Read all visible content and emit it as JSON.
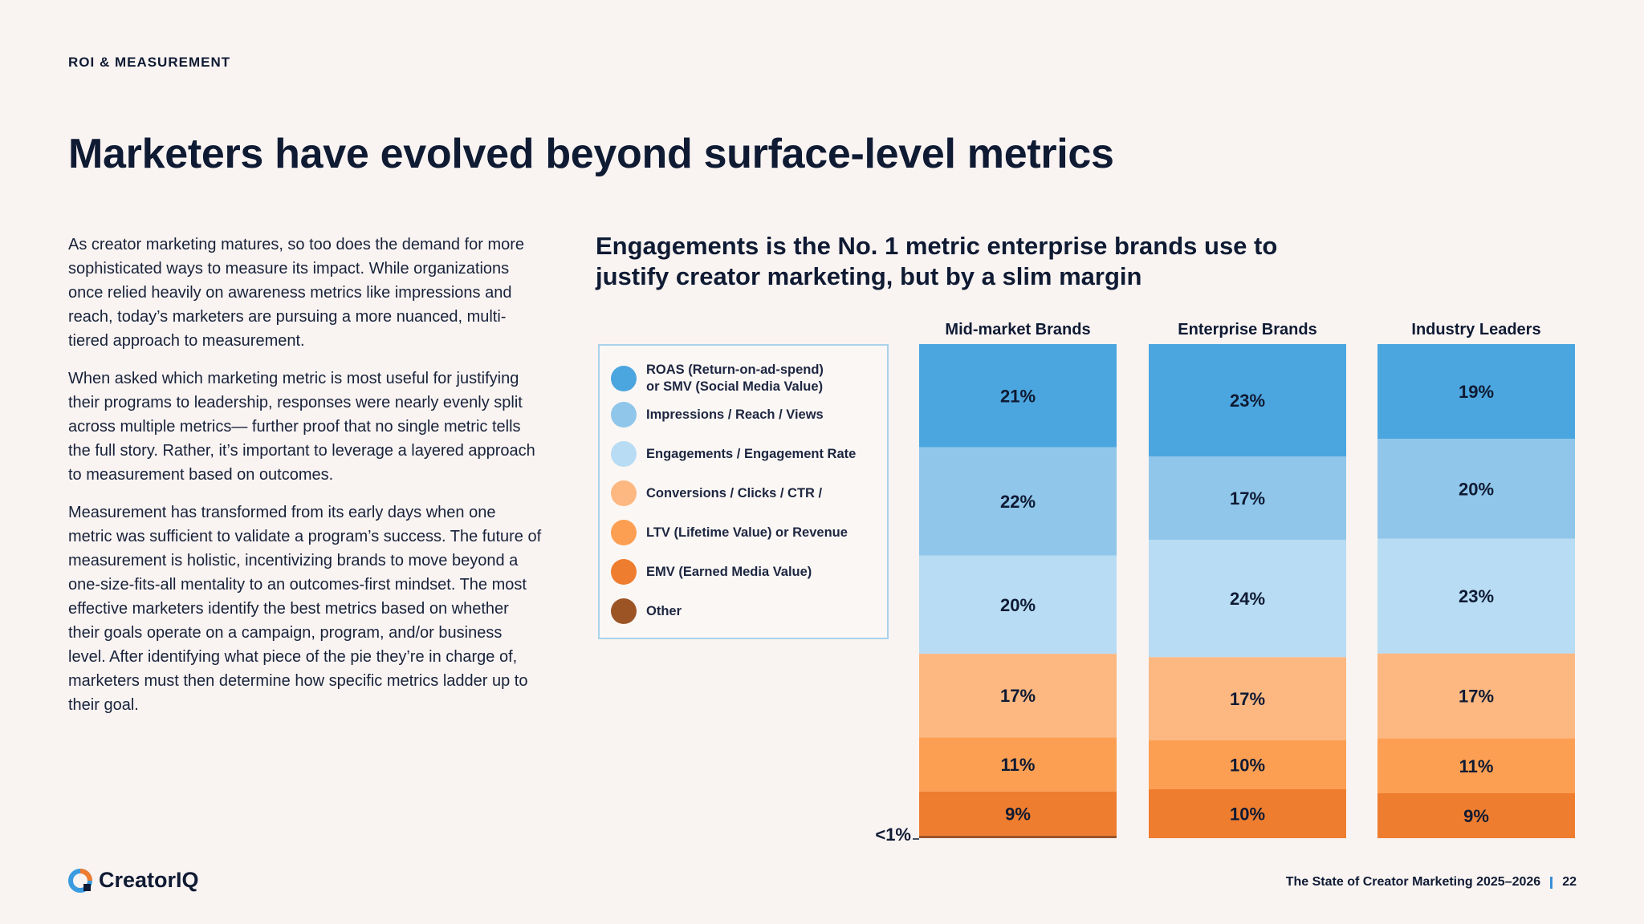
{
  "header": {
    "section_label": "ROI & MEASUREMENT",
    "title": "Marketers have evolved beyond surface-level metrics"
  },
  "body": {
    "paragraphs": [
      "As creator marketing matures, so too does the demand for more sophisticated ways to measure its impact. While organizations once relied heavily on awareness metrics like impressions and reach, today’s marketers are pursuing a more nuanced, multi-tiered approach to measurement.",
      "When asked which marketing metric is most useful for justifying their programs to leadership, responses were nearly evenly split across multiple metrics— further proof that no single metric tells the full story. Rather, it’s important to leverage a layered approach to measurement based on outcomes.",
      "Measurement has transformed from its early days when one metric was sufficient to validate a program’s success. The future of measurement is holistic, incentivizing brands to move beyond a one-size-fits-all mentality to an outcomes-first mindset. The most effective marketers identify the best metrics based on whether their goals operate on a campaign, program, and/or business level. After identifying what piece of the pie they’re in charge of, marketers must then determine how specific metrics ladder up to their goal."
    ]
  },
  "chart_data": {
    "type": "bar",
    "stacked": true,
    "orientation": "vertical",
    "title": "Engagements is the No. 1 metric enterprise brands use to justify creator marketing, but by a slim margin",
    "categories": [
      "Mid-market Brands",
      "Enterprise Brands",
      "Industry Leaders"
    ],
    "series": [
      {
        "name": "ROAS (Return-on-ad-spend)\nor SMV (Social Media Value)",
        "color": "#4ba6df",
        "values": [
          21,
          23,
          19
        ],
        "labels": [
          "21%",
          "23%",
          "19%"
        ]
      },
      {
        "name": "Impressions / Reach / Views",
        "color": "#8fc6ea",
        "values": [
          22,
          17,
          20
        ],
        "labels": [
          "22%",
          "17%",
          "20%"
        ]
      },
      {
        "name": "Engagements / Engagement Rate",
        "color": "#b7dcf3",
        "values": [
          20,
          24,
          23
        ],
        "labels": [
          "20%",
          "24%",
          "23%"
        ]
      },
      {
        "name": "Conversions / Clicks / CTR /",
        "color": "#fdb881",
        "values": [
          17,
          17,
          17
        ],
        "labels": [
          "17%",
          "17%",
          "17%"
        ]
      },
      {
        "name": "LTV (Lifetime Value) or Revenue",
        "color": "#fd9f52",
        "values": [
          11,
          10,
          11
        ],
        "labels": [
          "11%",
          "10%",
          "11%"
        ]
      },
      {
        "name": "EMV (Earned Media Value)",
        "color": "#ee7d2f",
        "values": [
          9,
          10,
          9
        ],
        "labels": [
          "9%",
          "10%",
          "9%"
        ]
      },
      {
        "name": "Other",
        "color": "#9c5425",
        "values": [
          0.5,
          0,
          0
        ],
        "labels": [
          "",
          "",
          ""
        ]
      }
    ],
    "annotations": [
      {
        "category": "Mid-market Brands",
        "series": "Other",
        "text": "<1%"
      }
    ],
    "legend_position": "left",
    "grid": false
  },
  "footer": {
    "logo_text": "CreatorIQ",
    "publication": "The State of Creator Marketing 2025–2026",
    "page_number": "22"
  },
  "colors": {
    "background": "#f9f4f2",
    "text": "#0f1a33",
    "legend_border": "#a9d2ec",
    "accent": "#3a8fd6"
  }
}
